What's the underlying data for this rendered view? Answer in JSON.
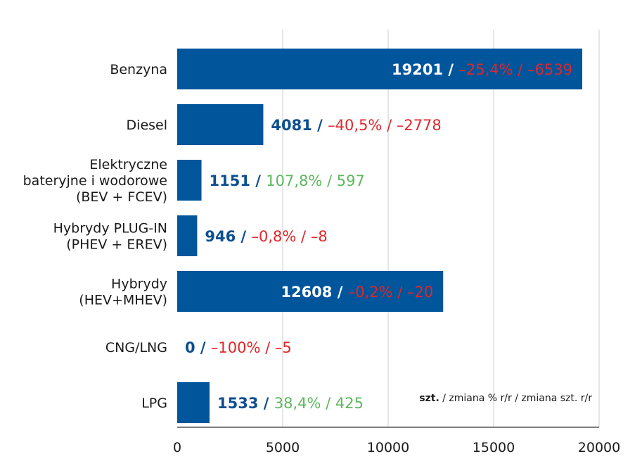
{
  "chart_data": {
    "type": "bar",
    "orientation": "horizontal",
    "categories": [
      [
        "Benzyna"
      ],
      [
        "Diesel"
      ],
      [
        "Elektryczne",
        "bateryjne i wodorowe",
        "(BEV + FCEV)"
      ],
      [
        "Hybrydy PLUG-IN",
        "(PHEV + EREV)"
      ],
      [
        "Hybrydy",
        "(HEV+MHEV)"
      ],
      [
        "CNG/LNG"
      ],
      [
        "LPG"
      ]
    ],
    "values": [
      19201,
      4081,
      1151,
      946,
      12608,
      0,
      1533
    ],
    "changes_pct": [
      "–25,4%",
      "–40,5%",
      "107,8%",
      "–0,8%",
      "–0,2%",
      "–100%",
      "38,4%"
    ],
    "changes_abs": [
      "–6539",
      "–2778",
      "597",
      "–8",
      "–20",
      "–5",
      "425"
    ],
    "change_positive": [
      false,
      false,
      true,
      false,
      false,
      false,
      true
    ],
    "label_inside": [
      true,
      false,
      false,
      false,
      true,
      false,
      false
    ],
    "xlim": [
      0,
      20000
    ],
    "xticks": [
      "0",
      "5000",
      "10000",
      "15000",
      "20000"
    ],
    "grid": "vertical",
    "legend_note": {
      "bold": "szt.",
      "rest": " / zmiana % r/r / zmiana szt. r/r"
    },
    "colors": {
      "bar": "#00559b",
      "value_outside": "#0d4f8f",
      "value_inside": "#ffffff",
      "negative": "#e0262b",
      "positive": "#5cb85c",
      "grid": "#cccccc",
      "axis": "#555555"
    }
  }
}
